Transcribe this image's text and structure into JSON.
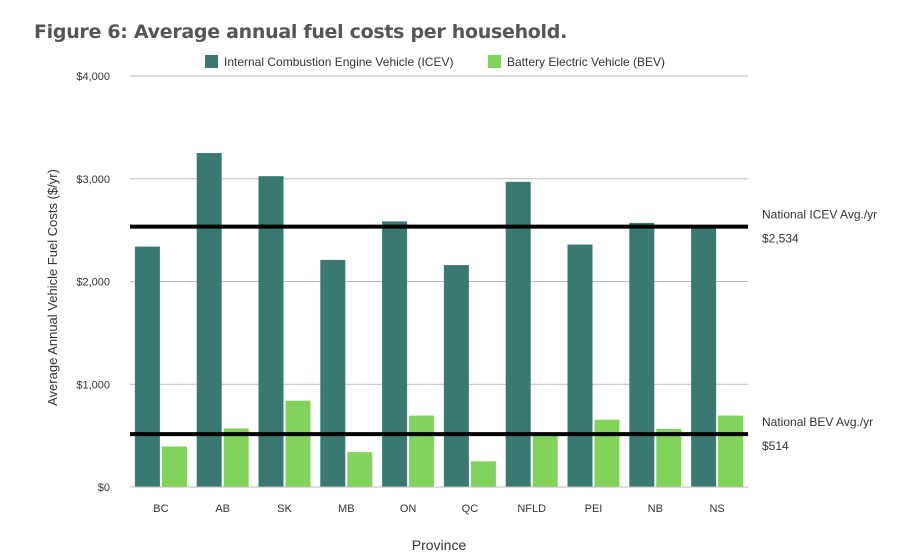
{
  "title": "Figure 6: Average annual fuel costs per household.",
  "colors": {
    "icev": "#3a7872",
    "bev": "#82d35c",
    "grid": "#bbbbbb",
    "reference": "#000000"
  },
  "chart_data": {
    "type": "bar",
    "title": "Figure 6: Average annual fuel costs per household.",
    "xlabel": "Province",
    "ylabel": "Average Annual Vehicle Fuel Costs ($/yr)",
    "categories": [
      "BC",
      "AB",
      "SK",
      "MB",
      "ON",
      "QC",
      "NFLD",
      "PEI",
      "NB",
      "NS"
    ],
    "series": [
      {
        "name": "Internal Combustion Engine Vehicle (ICEV)",
        "color": "#3a7872",
        "values": [
          2340,
          3250,
          3025,
          2210,
          2585,
          2160,
          2970,
          2360,
          2570,
          2540
        ]
      },
      {
        "name": "Battery Electric Vehicle (BEV)",
        "color": "#82d35c",
        "values": [
          395,
          570,
          840,
          340,
          695,
          250,
          520,
          655,
          565,
          695
        ]
      }
    ],
    "ylim": [
      0,
      4000
    ],
    "yticks": [
      0,
      1000,
      2000,
      3000,
      4000
    ],
    "ytick_labels": [
      "$0",
      "$1,000",
      "$2,000",
      "$3,000",
      "$4,000"
    ],
    "grid": true,
    "legend": "top",
    "reference_lines": [
      {
        "label": "National ICEV Avg./yr",
        "value_label": "$2,534",
        "value": 2534
      },
      {
        "label": "National BEV Avg./yr",
        "value_label": "$514",
        "value": 514
      }
    ]
  }
}
